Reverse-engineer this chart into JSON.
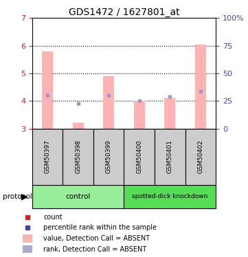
{
  "title": "GDS1472 / 1627801_at",
  "samples": [
    "GSM50397",
    "GSM50398",
    "GSM50399",
    "GSM50400",
    "GSM50401",
    "GSM50402"
  ],
  "bar_bottoms": [
    3.0,
    3.0,
    3.0,
    3.0,
    3.0,
    3.0
  ],
  "bar_tops": [
    5.8,
    3.2,
    4.9,
    4.0,
    4.1,
    6.05
  ],
  "rank_values": [
    4.2,
    3.9,
    4.2,
    4.0,
    4.15,
    4.35
  ],
  "ylim_left": [
    3,
    7
  ],
  "ylim_right": [
    0,
    100
  ],
  "yticks_left": [
    3,
    4,
    5,
    6,
    7
  ],
  "yticks_right": [
    0,
    25,
    50,
    75,
    100
  ],
  "ytick_right_labels": [
    "0",
    "25",
    "50",
    "75",
    "100%"
  ],
  "control_label": "control",
  "knockdown_label": "spotted-dick knockdown",
  "protocol_label": "protocol",
  "bar_color": "#ffb3b3",
  "rank_color": "#9999cc",
  "legend_count_color": "#cc2222",
  "legend_rank_color": "#4444aa",
  "legend_bar_color": "#ffb3b3",
  "legend_rankbar_color": "#aaaacc",
  "control_bg": "#99ee99",
  "knockdown_bg": "#55dd55",
  "sample_bg": "#cccccc",
  "bar_width": 0.35
}
